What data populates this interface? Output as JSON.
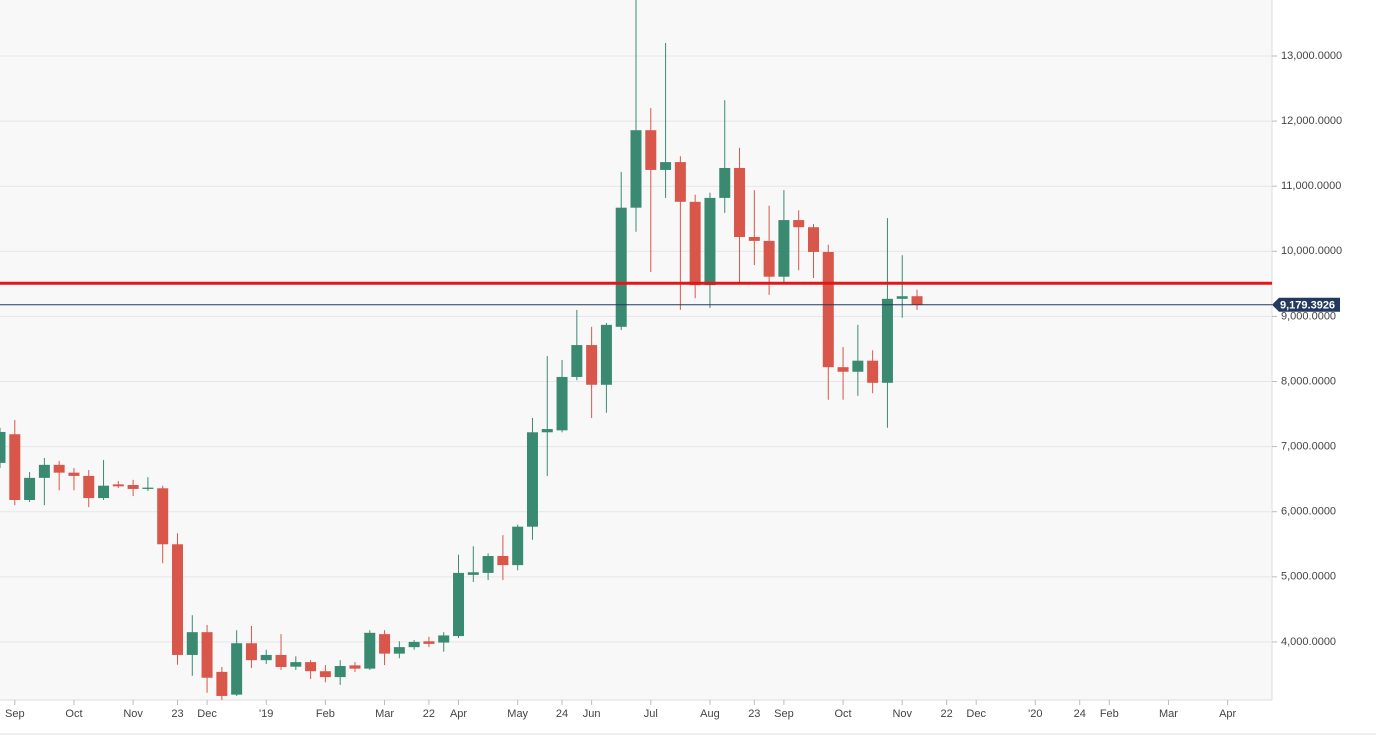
{
  "chart_data": {
    "type": "candlestick",
    "x": [
      0,
      1,
      2,
      3,
      4,
      5,
      6,
      7,
      8,
      9,
      10,
      11,
      12,
      13,
      14,
      15,
      16,
      17,
      18,
      19,
      20,
      21,
      22,
      23,
      24,
      25,
      26,
      27,
      28,
      29,
      30,
      31,
      32,
      33,
      34,
      35,
      36,
      37,
      38,
      39,
      40,
      41,
      42,
      43,
      44,
      45,
      46,
      47,
      48,
      49,
      50,
      51,
      52,
      53,
      54,
      55,
      56,
      57,
      58,
      59,
      60,
      61,
      62
    ],
    "open": [
      6750,
      7190,
      6180,
      6520,
      6720,
      6600,
      6550,
      6210,
      6420,
      6410,
      6350,
      6360,
      5500,
      3800,
      4150,
      3540,
      3190,
      3980,
      3720,
      3800,
      3620,
      3690,
      3550,
      3460,
      3640,
      3590,
      4120,
      3820,
      3920,
      4010,
      3990,
      4090,
      5030,
      5060,
      5320,
      5180,
      5770,
      7220,
      7250,
      8070,
      8560,
      7950,
      8840,
      10670,
      11860,
      11250,
      11370,
      10760,
      9480,
      10820,
      11280,
      10220,
      10160,
      9610,
      10480,
      10370,
      9990,
      8220,
      8150,
      8320,
      7980,
      9270,
      9310
    ],
    "high": [
      7290,
      7410,
      6610,
      6825,
      6780,
      6670,
      6640,
      6795,
      6470,
      6490,
      6530,
      6400,
      5670,
      4410,
      4260,
      3615,
      4180,
      4245,
      3880,
      4120,
      3780,
      3720,
      3645,
      3720,
      3690,
      4180,
      4180,
      4010,
      4030,
      4080,
      4150,
      5340,
      5470,
      5360,
      5640,
      5800,
      7440,
      8390,
      8330,
      9100,
      8840,
      8900,
      11220,
      13860,
      12200,
      13200,
      11460,
      10870,
      10900,
      12320,
      11590,
      10940,
      10700,
      10940,
      10630,
      10420,
      10100,
      8530,
      8870,
      8480,
      10510,
      9940,
      9410
    ],
    "low": [
      6670,
      6100,
      6150,
      6100,
      6330,
      6330,
      6070,
      6180,
      6365,
      6240,
      6320,
      5210,
      3650,
      3480,
      3220,
      3110,
      3170,
      3600,
      3660,
      3570,
      3570,
      3430,
      3380,
      3340,
      3540,
      3570,
      3645,
      3750,
      3880,
      3920,
      3850,
      4060,
      4920,
      4950,
      4950,
      5100,
      5570,
      6550,
      7220,
      8020,
      7440,
      7520,
      8790,
      10300,
      9680,
      10820,
      9100,
      9280,
      9130,
      10590,
      9510,
      9790,
      9330,
      9510,
      9710,
      9590,
      7720,
      7720,
      7780,
      7820,
      7290,
      8980,
      9100
    ],
    "close": [
      7225,
      6180,
      6520,
      6720,
      6600,
      6550,
      6210,
      6400,
      6390,
      6350,
      6370,
      5500,
      3800,
      4150,
      3450,
      3170,
      3980,
      3720,
      3800,
      3615,
      3690,
      3550,
      3460,
      3630,
      3590,
      4140,
      3820,
      3920,
      4000,
      3970,
      4100,
      5060,
      5070,
      5320,
      5180,
      5770,
      7220,
      7270,
      8070,
      8560,
      7950,
      8870,
      10670,
      11860,
      11250,
      11370,
      10760,
      9480,
      10820,
      11280,
      10220,
      10160,
      9610,
      10480,
      10370,
      9990,
      8220,
      8150,
      8320,
      7980,
      9270,
      9310,
      9179.3926
    ],
    "up_color": "#3a8a72",
    "down_color": "#d9574a",
    "xlim": [
      0,
      86
    ],
    "xticks": [
      {
        "value": 1,
        "label": "Sep"
      },
      {
        "value": 5,
        "label": "Oct"
      },
      {
        "value": 9,
        "label": "Nov"
      },
      {
        "value": 12,
        "label": "23"
      },
      {
        "value": 14,
        "label": "Dec"
      },
      {
        "value": 18,
        "label": "'19"
      },
      {
        "value": 22,
        "label": "Feb"
      },
      {
        "value": 26,
        "label": "Mar"
      },
      {
        "value": 29,
        "label": "22"
      },
      {
        "value": 31,
        "label": "Apr"
      },
      {
        "value": 35,
        "label": "May"
      },
      {
        "value": 38,
        "label": "24"
      },
      {
        "value": 40,
        "label": "Jun"
      },
      {
        "value": 44,
        "label": "Jul"
      },
      {
        "value": 48,
        "label": "Aug"
      },
      {
        "value": 51,
        "label": "23"
      },
      {
        "value": 53,
        "label": "Sep"
      },
      {
        "value": 57,
        "label": "Oct"
      },
      {
        "value": 61,
        "label": "Nov"
      },
      {
        "value": 64,
        "label": "22"
      },
      {
        "value": 66,
        "label": "Dec"
      },
      {
        "value": 70,
        "label": "'20"
      },
      {
        "value": 73,
        "label": "24"
      },
      {
        "value": 75,
        "label": "Feb"
      },
      {
        "value": 79,
        "label": "Mar"
      },
      {
        "value": 83,
        "label": "Apr"
      }
    ],
    "ylim": [
      3108,
      13860
    ],
    "yticks": [
      {
        "value": 4000,
        "label": "4,000.0000"
      },
      {
        "value": 5000,
        "label": "5,000.0000"
      },
      {
        "value": 6000,
        "label": "6,000.0000"
      },
      {
        "value": 7000,
        "label": "7,000.0000"
      },
      {
        "value": 8000,
        "label": "8,000.0000"
      },
      {
        "value": 9000,
        "label": "9,000.0000"
      },
      {
        "value": 10000,
        "label": "10,000.0000"
      },
      {
        "value": 11000,
        "label": "11,000.0000"
      },
      {
        "value": 12000,
        "label": "12,000.0000"
      },
      {
        "value": 13000,
        "label": "13,000.0000"
      }
    ],
    "grid": true,
    "level_line": {
      "value": 9510,
      "color": "#e01818"
    },
    "last_price": {
      "value": 9179.3926,
      "label": "9,179.3926",
      "color": "#233a5e"
    }
  }
}
